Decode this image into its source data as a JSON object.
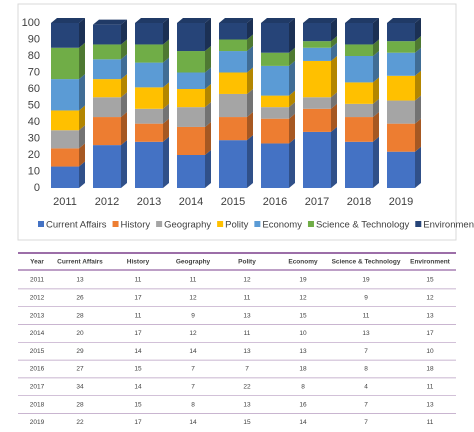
{
  "chart_data": {
    "type": "stacked-bar",
    "categories": [
      "2011",
      "2012",
      "2013",
      "2014",
      "2015",
      "2016",
      "2017",
      "2018",
      "2019"
    ],
    "series": [
      {
        "name": "Current Affairs",
        "color": "#4472c4",
        "values": [
          13,
          26,
          28,
          20,
          29,
          27,
          34,
          28,
          22
        ]
      },
      {
        "name": "History",
        "color": "#ed7d31",
        "values": [
          11,
          17,
          11,
          17,
          14,
          15,
          14,
          15,
          17
        ]
      },
      {
        "name": "Geography",
        "color": "#a5a5a5",
        "values": [
          11,
          12,
          9,
          12,
          14,
          7,
          7,
          8,
          14
        ]
      },
      {
        "name": "Polity",
        "color": "#ffc000",
        "values": [
          12,
          11,
          13,
          11,
          13,
          7,
          22,
          13,
          15
        ]
      },
      {
        "name": "Economy",
        "color": "#5b9bd5",
        "values": [
          19,
          12,
          15,
          10,
          13,
          18,
          8,
          16,
          14
        ]
      },
      {
        "name": "Science & Technology",
        "color": "#70ad47",
        "values": [
          19,
          9,
          11,
          13,
          7,
          8,
          4,
          7,
          7
        ]
      },
      {
        "name": "Environment",
        "color": "#264478",
        "values": [
          15,
          12,
          13,
          17,
          10,
          18,
          11,
          13,
          11
        ]
      }
    ],
    "ylim": [
      0,
      100
    ],
    "yticks": [
      0,
      10,
      20,
      30,
      40,
      50,
      60,
      70,
      80,
      90,
      100
    ],
    "grid": false,
    "legend": "bottom"
  },
  "table": {
    "year_header": "Year"
  }
}
